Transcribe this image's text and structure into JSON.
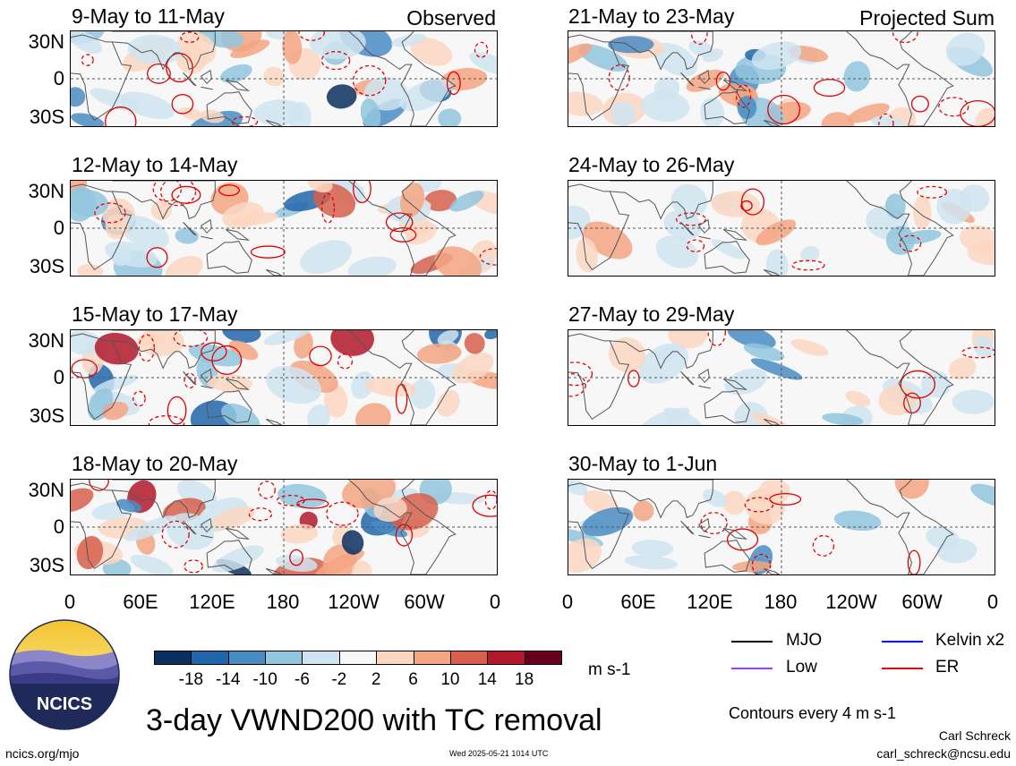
{
  "chart_data": {
    "type": "heatmap",
    "title": "3-day VWND200 with TC removal",
    "units": "m s-1",
    "left_column_label": "Observed",
    "right_column_label": "Projected Sum",
    "panels": [
      {
        "period": "9-May to 11-May",
        "column": "Observed"
      },
      {
        "period": "12-May to 14-May",
        "column": "Observed"
      },
      {
        "period": "15-May to 17-May",
        "column": "Observed"
      },
      {
        "period": "18-May to 20-May",
        "column": "Observed"
      },
      {
        "period": "21-May to 23-May",
        "column": "Projected Sum"
      },
      {
        "period": "24-May to 26-May",
        "column": "Projected Sum"
      },
      {
        "period": "27-May to 29-May",
        "column": "Projected Sum"
      },
      {
        "period": "30-May to 1-Jun",
        "column": "Projected Sum"
      }
    ],
    "y_ticks": [
      "30N",
      "0",
      "30S"
    ],
    "x_ticks": [
      "0",
      "60E",
      "120E",
      "180",
      "120W",
      "60W",
      "0"
    ],
    "colorbar": {
      "ticks": [
        "-18",
        "-14",
        "-10",
        "-6",
        "-2",
        "2",
        "6",
        "10",
        "14",
        "18"
      ],
      "colors": [
        "#0b2f5e",
        "#2166ac",
        "#4a8cc4",
        "#92c5de",
        "#cfe4f0",
        "#f7f7f7",
        "#fbd7c2",
        "#f4a582",
        "#d6604d",
        "#b2182b",
        "#67001f"
      ]
    },
    "contour_legend": [
      {
        "label": "MJO",
        "color": "#000000"
      },
      {
        "label": "Kelvin x2",
        "color": "#0000ff"
      },
      {
        "label": "Low",
        "color": "#a040ff"
      },
      {
        "label": "ER",
        "color": "#e00000"
      }
    ],
    "contour_note": "Contours every 4 m s-1"
  },
  "footer": {
    "logo_text": "NCICS",
    "site": "ncics.org/mjo",
    "timestamp": "Wed 2025-05-21 1014 UTC",
    "author": "Carl Schreck",
    "email": "carl_schreck@ncsu.edu"
  }
}
